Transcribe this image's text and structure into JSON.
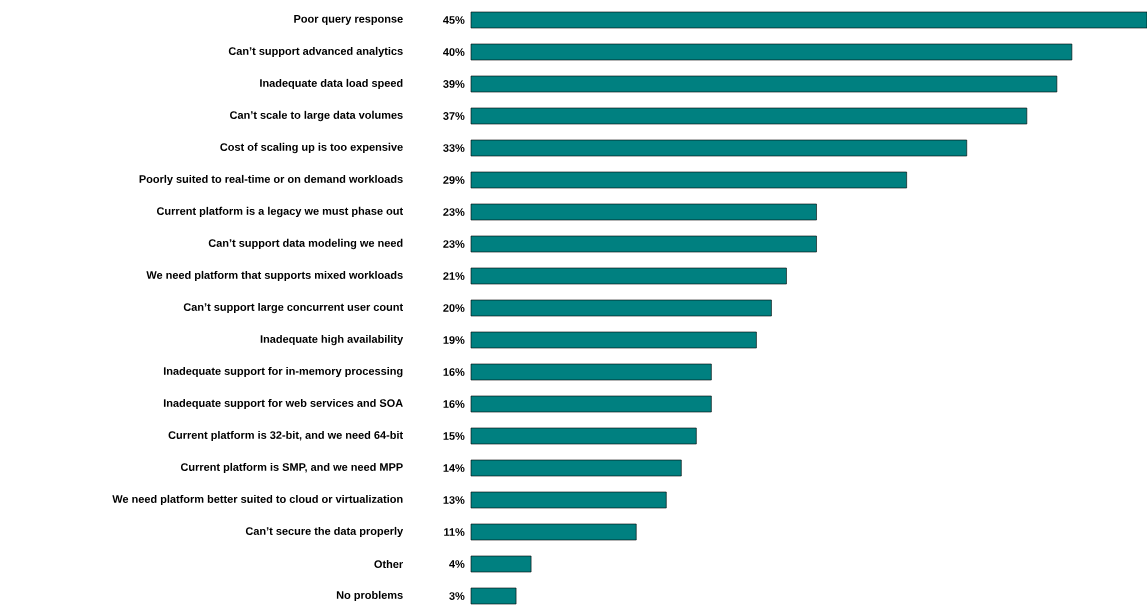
{
  "chart_data": {
    "type": "bar",
    "orientation": "horizontal",
    "color": "#008080",
    "categories": [
      "Poor query response",
      "Can’t support advanced analytics",
      "Inadequate data load speed",
      "Can’t scale to large data volumes",
      "Cost of scaling up is too expensive",
      "Poorly suited to real-time or on demand workloads",
      "Current platform is a legacy we must phase out",
      "Can’t support data modeling we need",
      "We need platform that supports mixed workloads",
      "Can’t support large concurrent user count",
      "Inadequate high availability",
      "Inadequate support for in-memory processing",
      "Inadequate support for web services and SOA",
      "Current platform is 32-bit, and we need 64-bit",
      "Current platform is SMP, and we need MPP",
      "We need platform better suited to cloud or virtualization",
      "Can’t secure the data properly",
      "Other",
      "No problems"
    ],
    "values": [
      45,
      40,
      39,
      37,
      33,
      29,
      23,
      23,
      21,
      20,
      19,
      16,
      16,
      15,
      14,
      13,
      11,
      4,
      3
    ],
    "value_labels": [
      "45%",
      "40%",
      "39%",
      "37%",
      "33%",
      "29%",
      "23%",
      "23%",
      "21%",
      "20%",
      "19%",
      "16%",
      "16%",
      "15%",
      "14%",
      "13%",
      "11%",
      "4%",
      "3%"
    ]
  }
}
